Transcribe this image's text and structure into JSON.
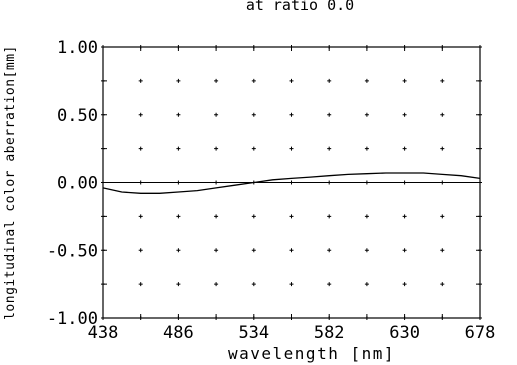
{
  "chart_data": {
    "type": "line",
    "title": "at ratio 0.0",
    "xlabel": "wavelength [nm]",
    "ylabel": "longitudinal color aberration[mm]",
    "xlim": [
      438,
      678
    ],
    "ylim": [
      -1.0,
      1.0
    ],
    "xticks": [
      438,
      486,
      534,
      582,
      630,
      678
    ],
    "xtick_labels": [
      "438",
      "486",
      "534",
      "582",
      "630",
      "678"
    ],
    "yticks": [
      1.0,
      0.5,
      0.0,
      -0.5,
      -1.0
    ],
    "ytick_labels": [
      "1.00",
      "0.50",
      "0.00",
      "-0.50",
      "-1.00"
    ],
    "grid": "dots",
    "series": [
      {
        "x": [
          438,
          450,
          462,
          474,
          486,
          498,
          510,
          522,
          534,
          546,
          558,
          570,
          582,
          594,
          606,
          618,
          630,
          642,
          654,
          666,
          678
        ],
        "y": [
          -0.04,
          -0.07,
          -0.08,
          -0.08,
          -0.07,
          -0.06,
          -0.04,
          -0.02,
          0.0,
          0.02,
          0.03,
          0.04,
          0.05,
          0.06,
          0.065,
          0.07,
          0.07,
          0.07,
          0.06,
          0.05,
          0.03
        ]
      }
    ]
  }
}
